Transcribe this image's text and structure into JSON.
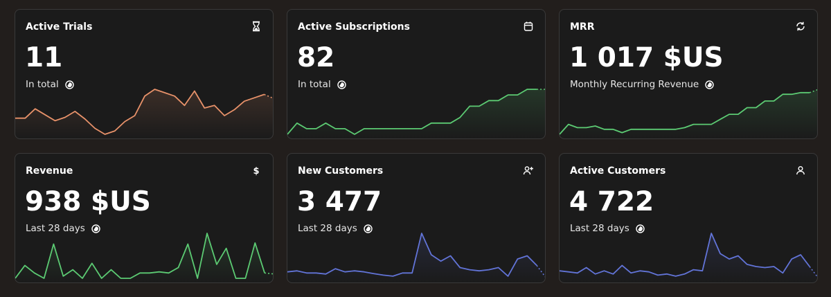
{
  "cards": [
    {
      "title": "Active Trials",
      "value": "11",
      "subtitle": "In total",
      "icon": "hourglass-icon",
      "color": "#e8926a",
      "series": [
        48,
        48,
        59,
        52,
        45,
        49,
        56,
        47,
        36,
        29,
        33,
        44,
        51,
        74,
        82,
        78,
        74,
        63,
        80,
        60,
        63,
        51,
        58,
        68,
        72,
        76,
        71
      ]
    },
    {
      "title": "Active Subscriptions",
      "value": "82",
      "subtitle": "In total",
      "icon": "calendar-icon",
      "color": "#5ccb73",
      "series": [
        64,
        66,
        65,
        65,
        66,
        65,
        65,
        64,
        65,
        65,
        65,
        65,
        65,
        65,
        65,
        66,
        66,
        66,
        67,
        69,
        69,
        70,
        70,
        71,
        71,
        72,
        72,
        72
      ]
    },
    {
      "title": "MRR",
      "value": "1 017 $US",
      "subtitle": "Monthly Recurring Revenue",
      "icon": "repeat-icon",
      "color": "#5ccb73",
      "series": [
        850,
        880,
        870,
        870,
        875,
        865,
        865,
        855,
        865,
        865,
        865,
        865,
        865,
        865,
        870,
        880,
        880,
        880,
        895,
        910,
        910,
        930,
        930,
        950,
        950,
        970,
        970,
        975,
        975,
        985
      ]
    },
    {
      "title": "Revenue",
      "value": "938 $US",
      "subtitle": "Last 28 days",
      "icon": "dollar-icon",
      "color": "#5ccb73",
      "series": [
        0,
        12,
        5,
        0,
        32,
        2,
        8,
        0,
        14,
        0,
        8,
        0,
        0,
        5,
        5,
        6,
        5,
        10,
        32,
        0,
        42,
        13,
        28,
        0,
        0,
        33,
        5,
        4
      ]
    },
    {
      "title": "New Customers",
      "value": "3 477",
      "subtitle": "Last 28 days",
      "icon": "user-plus-icon",
      "color": "#6274d8",
      "series": [
        90,
        95,
        85,
        85,
        80,
        105,
        90,
        95,
        90,
        82,
        75,
        70,
        85,
        85,
        270,
        170,
        140,
        165,
        110,
        100,
        95,
        100,
        110,
        70,
        150,
        165,
        120,
        60
      ]
    },
    {
      "title": "Active Customers",
      "value": "4 722",
      "subtitle": "Last 28 days",
      "icon": "user-icon",
      "color": "#6274d8",
      "series": [
        95,
        90,
        85,
        110,
        80,
        95,
        80,
        120,
        85,
        95,
        90,
        75,
        80,
        70,
        80,
        100,
        95,
        270,
        175,
        150,
        165,
        125,
        115,
        110,
        115,
        85,
        150,
        170,
        115,
        60
      ]
    }
  ]
}
